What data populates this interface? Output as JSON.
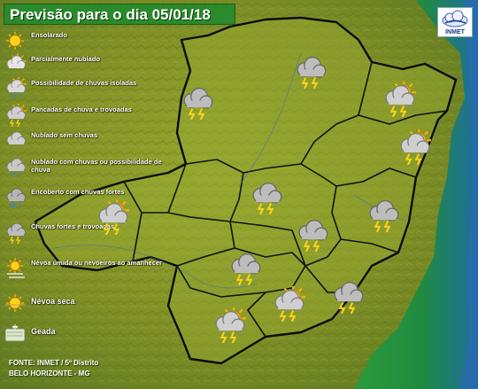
{
  "title": "Previsão para o dia 05/01/18",
  "logo": {
    "name": "INMET"
  },
  "legend": [
    {
      "label": "Ensolarado",
      "icon": "sun-icon"
    },
    {
      "label": "Parcialmente nublado",
      "icon": "sun-cloud-icon"
    },
    {
      "label": "Possibilidade de chuvas isoladas",
      "icon": "sun-cloud-rain-icon"
    },
    {
      "label": "Pancadas de chuva e trovoadas",
      "icon": "sun-cloud-storm-icon"
    },
    {
      "label": "Nublado sem chuvas",
      "icon": "cloud-icon"
    },
    {
      "label": "Nublado com chuvas ou possibilidade de chuva",
      "icon": "cloud-rain-icon"
    },
    {
      "label": "Encoberto com chuvas fortes",
      "icon": "cloud-heavy-rain-icon"
    },
    {
      "label": "Chuvas fortes e trovoadas",
      "icon": "cloud-storm-icon"
    },
    {
      "label": "Névoa úmida ou nevoeiros ao amanhecer",
      "icon": "sun-fog-icon"
    },
    {
      "label": "Névoa seca",
      "icon": "haze-icon"
    },
    {
      "label": "Geada",
      "icon": "frost-icon"
    }
  ],
  "source": {
    "line1": "FONTE: INMET / 5º Distrito",
    "line2": "BELO HORIZONTE - MG"
  },
  "region_forecasts": [
    {
      "region": "noroeste",
      "icon": "cloud-storm-icon"
    },
    {
      "region": "norte",
      "icon": "cloud-storm-icon"
    },
    {
      "region": "jequitinhonha",
      "icon": "sun-cloud-storm-icon"
    },
    {
      "region": "mucuri",
      "icon": "sun-cloud-storm-icon"
    },
    {
      "region": "triangulo",
      "icon": "sun-cloud-storm-icon"
    },
    {
      "region": "central",
      "icon": "cloud-storm-icon"
    },
    {
      "region": "rio-doce",
      "icon": "cloud-storm-icon"
    },
    {
      "region": "metropolitana",
      "icon": "cloud-storm-icon"
    },
    {
      "region": "oeste",
      "icon": "cloud-storm-icon"
    },
    {
      "region": "campo-das-vertentes",
      "icon": "sun-cloud-storm-icon"
    },
    {
      "region": "zona-da-mata",
      "icon": "cloud-storm-icon"
    },
    {
      "region": "sul",
      "icon": "sun-cloud-storm-icon"
    }
  ],
  "colors": {
    "land": "#8a9a2a",
    "coast": "#2f9a3a",
    "ocean": "#2a5a9e",
    "border": "#111111",
    "title_bg": "#2b8a2b"
  }
}
